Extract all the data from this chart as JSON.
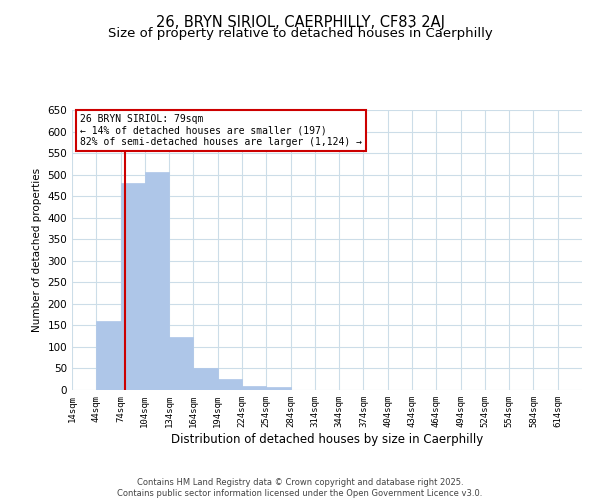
{
  "title1": "26, BRYN SIRIOL, CAERPHILLY, CF83 2AJ",
  "title2": "Size of property relative to detached houses in Caerphilly",
  "xlabel": "Distribution of detached houses by size in Caerphilly",
  "ylabel": "Number of detached properties",
  "bar_heights": [
    0,
    160,
    480,
    507,
    123,
    52,
    25,
    10,
    6,
    0,
    0,
    0,
    0,
    0,
    0,
    0,
    0,
    0,
    0,
    0,
    0
  ],
  "bin_labels": [
    "14sqm",
    "44sqm",
    "74sqm",
    "104sqm",
    "134sqm",
    "164sqm",
    "194sqm",
    "224sqm",
    "254sqm",
    "284sqm",
    "314sqm",
    "344sqm",
    "374sqm",
    "404sqm",
    "434sqm",
    "464sqm",
    "494sqm",
    "524sqm",
    "554sqm",
    "584sqm",
    "614sqm"
  ],
  "bin_edges": [
    14,
    44,
    74,
    104,
    134,
    164,
    194,
    224,
    254,
    284,
    314,
    344,
    374,
    404,
    434,
    464,
    494,
    524,
    554,
    584,
    614,
    644
  ],
  "bar_color": "#aec6e8",
  "bar_edgecolor": "#aec6e8",
  "vline_x": 79,
  "vline_color": "#cc0000",
  "ylim": [
    0,
    650
  ],
  "yticks": [
    0,
    50,
    100,
    150,
    200,
    250,
    300,
    350,
    400,
    450,
    500,
    550,
    600,
    650
  ],
  "annotation_title": "26 BRYN SIRIOL: 79sqm",
  "annotation_line1": "← 14% of detached houses are smaller (197)",
  "annotation_line2": "82% of semi-detached houses are larger (1,124) →",
  "annotation_box_color": "#ffffff",
  "annotation_box_edgecolor": "#cc0000",
  "footer1": "Contains HM Land Registry data © Crown copyright and database right 2025.",
  "footer2": "Contains public sector information licensed under the Open Government Licence v3.0.",
  "background_color": "#ffffff",
  "grid_color": "#ccdde8",
  "title_fontsize": 10.5,
  "subtitle_fontsize": 9.5
}
